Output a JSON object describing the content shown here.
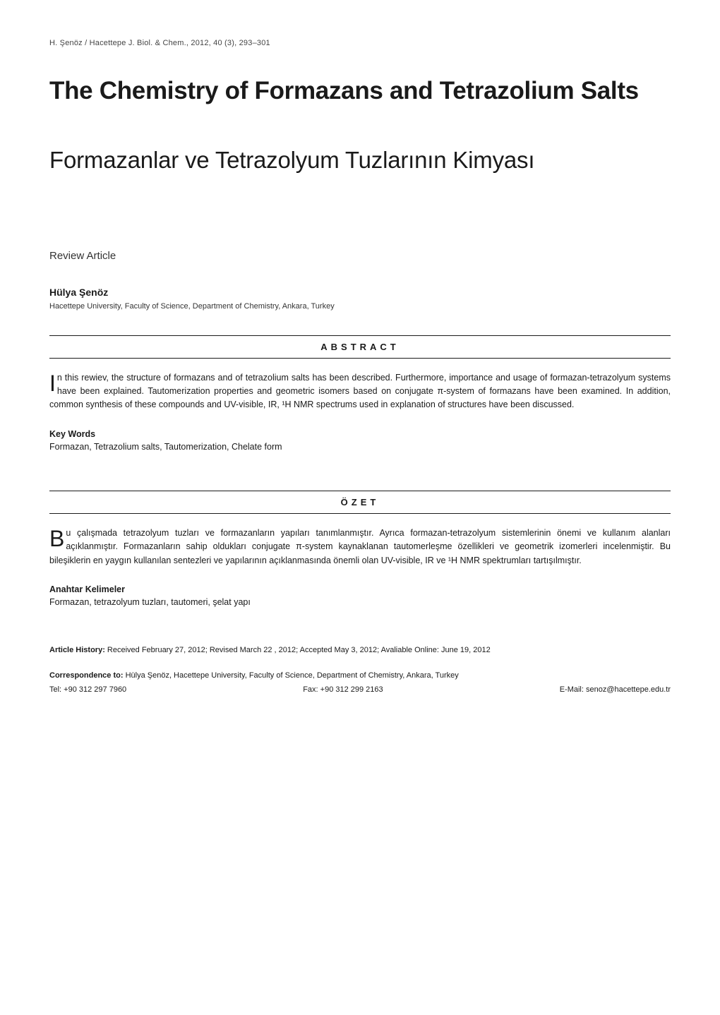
{
  "journal_ref": "H. Şenöz / Hacettepe J. Biol. & Chem., 2012, 40 (3), 293–301",
  "title_en": "The Chemistry of Formazans and Tetrazolium Salts",
  "title_tr": "Formazanlar ve Tetrazolyum Tuzlarının Kimyası",
  "article_type": "Review Article",
  "author": "Hülya Şenöz",
  "affiliation": "Hacettepe University, Faculty of Science, Department of Chemistry, Ankara, Turkey",
  "abstract": {
    "header": "ABSTRACT",
    "dropcap": "I",
    "text": "n this rewiev, the structure of formazans and of tetrazolium salts has been described. Furthermore, importance and usage of formazan-tetrazolyum systems have been explained. Tautomerization properties and geometric isomers based on conjugate π-system of formazans have been examined. In addition, common synthesis of these compounds and UV-visible, IR, ¹H NMR spectrums used in explanation of structures have been discussed."
  },
  "keywords": {
    "label": "Key Words",
    "text": "Formazan, Tetrazolium salts, Tautomerization, Chelate form"
  },
  "ozet": {
    "header": "ÖZET",
    "dropcap": "B",
    "text": "u çalışmada tetrazolyum tuzları ve formazanların yapıları tanımlanmıştır. Ayrıca formazan-tetrazolyum sistemlerinin önemi ve kullanım alanları açıklanmıştır. Formazanların sahip oldukları conjugate π-system kaynaklanan tautomerleşme özellikleri ve geometrik izomerleri incelenmiştir. Bu bileşiklerin en yaygın kullanılan sentezleri ve yapılarının açıklanmasında önemli olan UV-visible, IR ve ¹H NMR spektrumları tartışılmıştır."
  },
  "anahtar": {
    "label": "Anahtar Kelimeler",
    "text": "Formazan, tetrazolyum tuzları, tautomeri, şelat yapı"
  },
  "history": {
    "label": "Article History:",
    "text": " Received February 27, 2012; Revised March 22 , 2012; Accepted May 3, 2012; Avaliable Online: June 19, 2012"
  },
  "correspondence": {
    "label": "Correspondence to:",
    "text": " Hülya Şenöz, Hacettepe University, Faculty of Science, Department of Chemistry, Ankara, Turkey"
  },
  "contact": {
    "tel": "Tel: +90 312 297 7960",
    "fax": "Fax: +90 312 299 2163",
    "email": "E-Mail: senoz@hacettepe.edu.tr"
  },
  "styles": {
    "page_bg": "#ffffff",
    "text_color": "#1a1a1a",
    "rule_color": "#1a1a1a",
    "title_en_fontsize": 35,
    "title_en_weight": 700,
    "title_tr_fontsize": 33,
    "title_tr_weight": 300,
    "body_fontsize": 12.5,
    "section_header_letterspacing": 5,
    "dropcap_fontsize": 32,
    "small_text_fontsize": 11
  }
}
